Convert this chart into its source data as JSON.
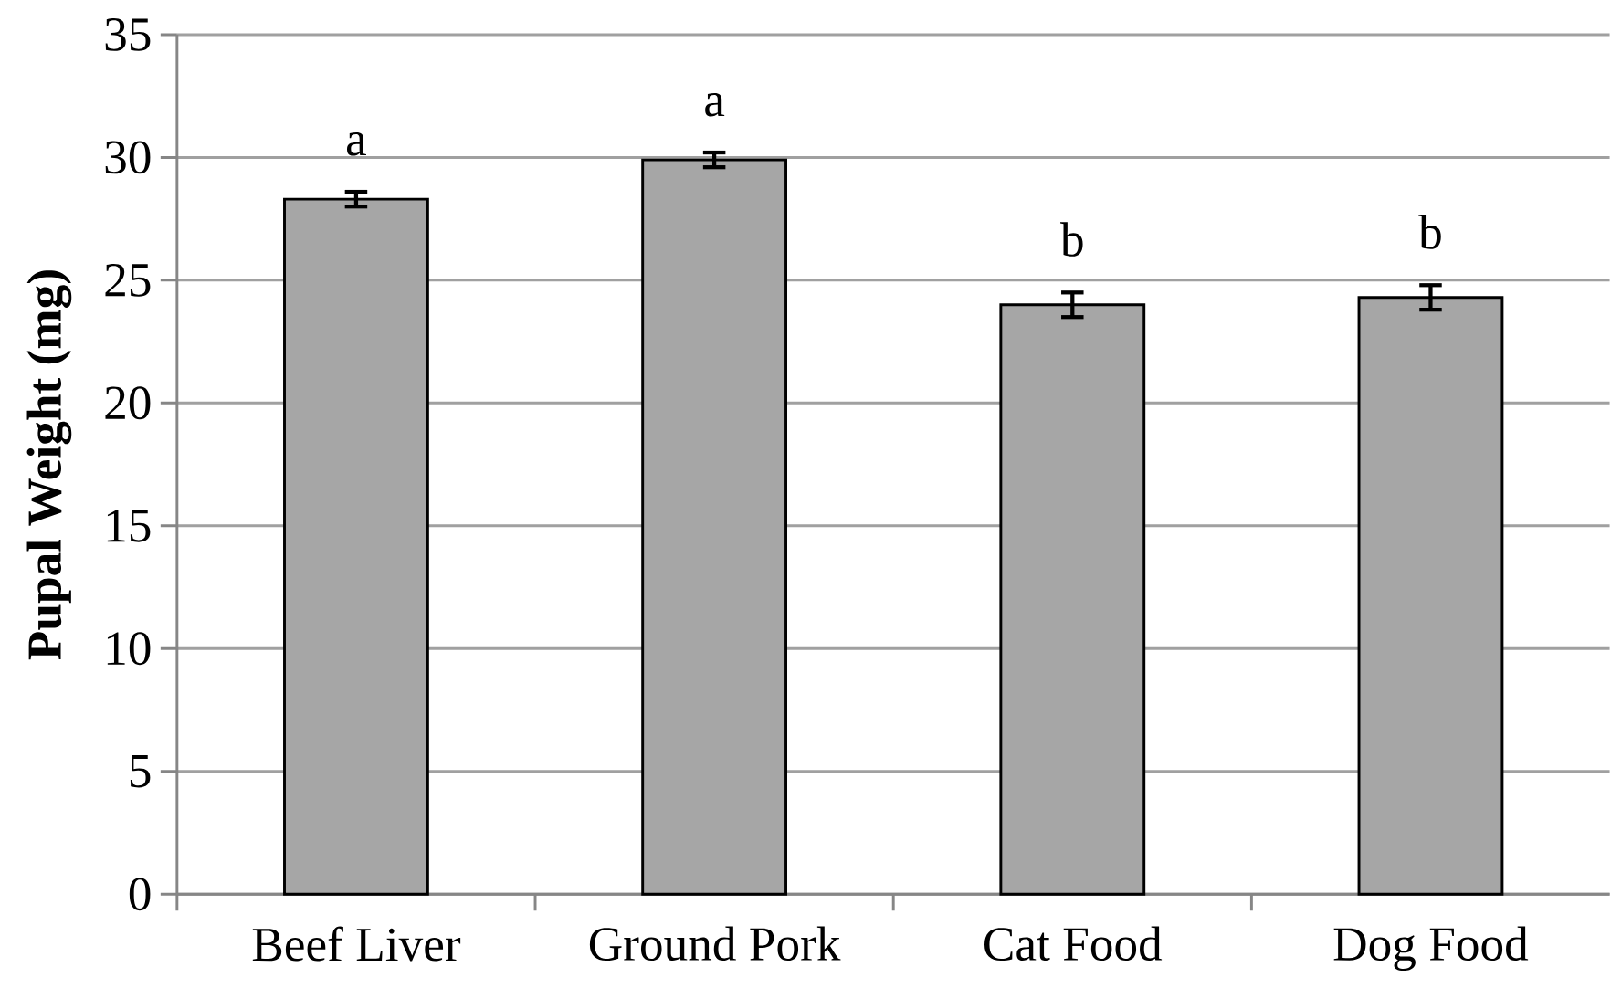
{
  "chart_data": {
    "type": "bar",
    "ylabel": "Pupal Weight (mg)",
    "categories": [
      "Beef Liver",
      "Ground Pork",
      "Cat Food",
      "Dog Food"
    ],
    "values": [
      28.3,
      29.9,
      24.0,
      24.3
    ],
    "errors": [
      0.3,
      0.3,
      0.5,
      0.5
    ],
    "color": "#a6a6a6",
    "ylim": [
      0,
      35
    ],
    "yticks": [
      0,
      5,
      10,
      15,
      20,
      25,
      30,
      35
    ],
    "grid": "y",
    "annotations": [
      "a",
      "a",
      "b",
      "b"
    ]
  }
}
